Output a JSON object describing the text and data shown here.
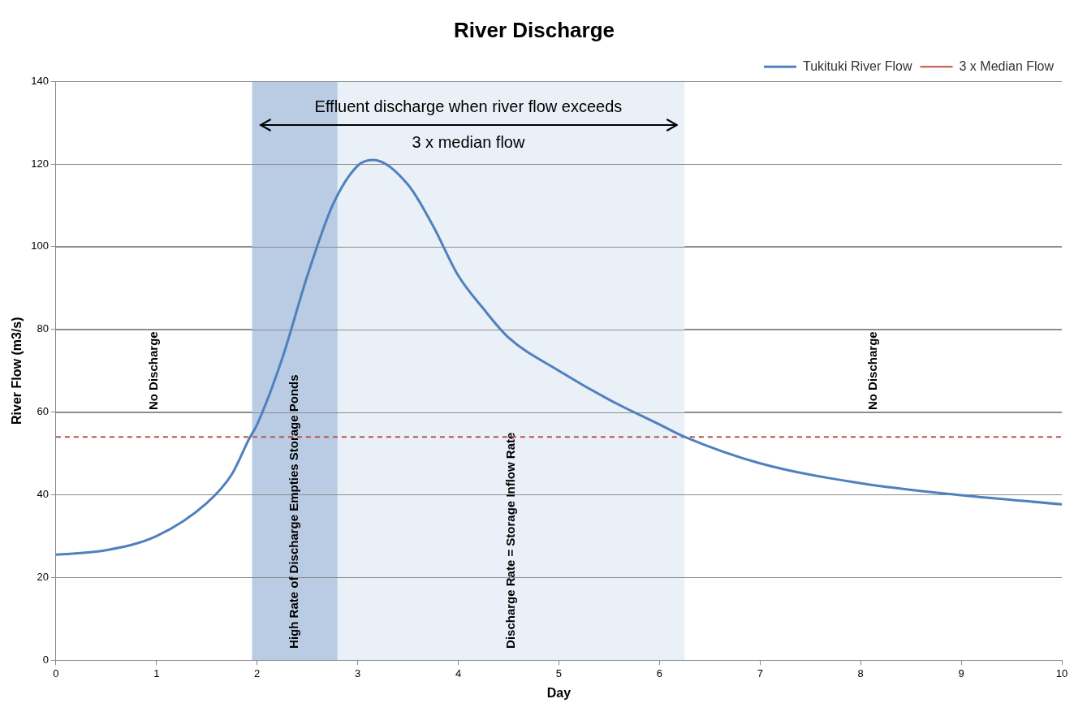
{
  "chart_data": {
    "type": "line",
    "title": "River Discharge",
    "xlabel": "Day",
    "ylabel": "River Flow (m3/s)",
    "xlim": [
      0,
      10
    ],
    "xticks": [
      0,
      1,
      2,
      3,
      4,
      5,
      6,
      7,
      8,
      9,
      10
    ],
    "ylim": [
      0,
      140
    ],
    "yticks": [
      0,
      20,
      40,
      60,
      80,
      100,
      120,
      140
    ],
    "grid": "y",
    "legend": "top right",
    "marker": "none",
    "series": [
      {
        "name": "Tukituki River Flow",
        "color": "#4f81bd",
        "line_style": "solid",
        "x": [
          0,
          0.5,
          1,
          1.5,
          1.75,
          1.92,
          2,
          2.25,
          2.5,
          2.75,
          3,
          3.15,
          3.5,
          3.75,
          4,
          4.25,
          4.5,
          5,
          5.5,
          6,
          6.25,
          7,
          8,
          9,
          10
        ],
        "values": [
          25.5,
          26.6,
          30,
          38,
          45,
          53.5,
          57,
          73,
          93,
          110,
          119.6,
          121,
          115,
          105,
          93,
          85,
          78,
          70,
          63,
          57,
          54,
          47.6,
          42.8,
          39.9,
          37.7
        ]
      }
    ],
    "ref_lines": [
      {
        "axis": "y",
        "value": 54,
        "label": "3 x Median Flow",
        "color": "#c0504d",
        "line_style": "dashed"
      }
    ],
    "bands": [
      {
        "axis": "x",
        "from": 1.95,
        "to": 2.8,
        "label": "High Rate of Discharge Empties Storage Ponds",
        "color": "#b9cce4"
      },
      {
        "axis": "x",
        "from": 2.8,
        "to": 6.25,
        "label": "Discharge Rate = Storage Inflow Rate",
        "color": "#eaf0f7"
      }
    ],
    "annotations": [
      "No Discharge",
      "No Discharge",
      "Effluent discharge when river flow exceeds 3 x median flow"
    ]
  }
}
